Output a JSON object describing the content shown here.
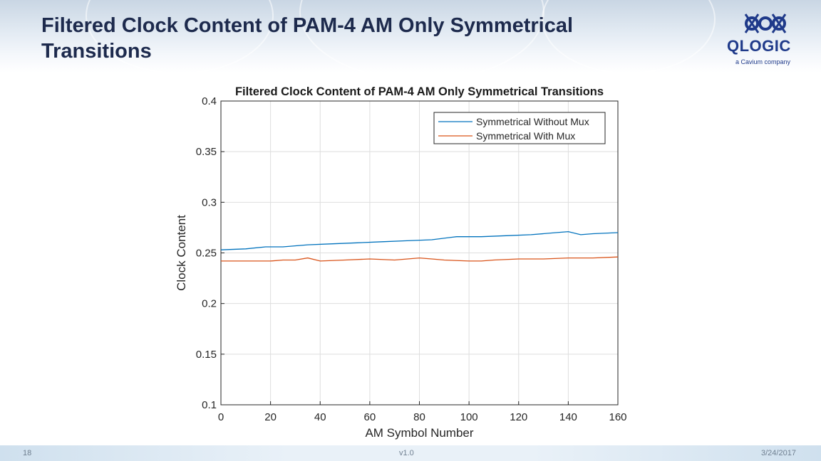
{
  "slide": {
    "title": "Filtered Clock Content of PAM-4 AM Only Symmetrical Transitions",
    "page_number": "18",
    "version": "v1.0",
    "date": "3/24/2017"
  },
  "logo": {
    "brand": "QLOGIC",
    "tagline": "a Cavium company",
    "color": "#1f3a8a"
  },
  "chart_data": {
    "type": "line",
    "title": "Filtered Clock Content of PAM-4 AM Only Symmetrical Transitions",
    "xlabel": "AM Symbol Number",
    "ylabel": "Clock Content",
    "xlim": [
      0,
      160
    ],
    "ylim": [
      0.1,
      0.4
    ],
    "xticks": [
      0,
      20,
      40,
      60,
      80,
      100,
      120,
      140,
      160
    ],
    "yticks": [
      0.1,
      0.15,
      0.2,
      0.25,
      0.3,
      0.35,
      0.4
    ],
    "grid": true,
    "legend_position": "top-right",
    "series": [
      {
        "name": "Symmetrical Without Mux",
        "color": "#0072bd",
        "x": [
          0,
          10,
          18,
          25,
          35,
          45,
          55,
          65,
          75,
          85,
          95,
          105,
          115,
          125,
          135,
          140,
          145,
          150,
          160
        ],
        "y": [
          0.253,
          0.254,
          0.256,
          0.256,
          0.258,
          0.259,
          0.26,
          0.261,
          0.262,
          0.263,
          0.266,
          0.266,
          0.267,
          0.268,
          0.27,
          0.271,
          0.268,
          0.269,
          0.27
        ]
      },
      {
        "name": "Symmetrical With Mux",
        "color": "#d95319",
        "x": [
          0,
          10,
          20,
          25,
          30,
          35,
          40,
          50,
          60,
          70,
          80,
          85,
          90,
          100,
          105,
          110,
          120,
          130,
          140,
          150,
          160
        ],
        "y": [
          0.242,
          0.242,
          0.242,
          0.243,
          0.243,
          0.245,
          0.242,
          0.243,
          0.244,
          0.243,
          0.245,
          0.244,
          0.243,
          0.242,
          0.242,
          0.243,
          0.244,
          0.244,
          0.245,
          0.245,
          0.246
        ]
      }
    ]
  }
}
